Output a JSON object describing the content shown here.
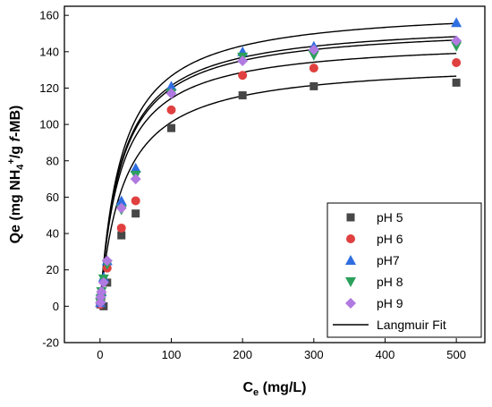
{
  "chart_data": {
    "type": "scatter",
    "xlabel_main": "C",
    "xlabel_sub": "e",
    "xlabel_rest": " (mg/L)",
    "ylabel_main": "Qe (mg NH",
    "ylabel_sub": "4",
    "ylabel_sup": "+",
    "ylabel_mid": "/g ",
    "ylabel_italic": "f",
    "ylabel_end": "-MB)",
    "xlim": [
      -50,
      540
    ],
    "ylim": [
      -20,
      165
    ],
    "xticks": [
      0,
      100,
      200,
      300,
      400,
      500
    ],
    "yticks": [
      -20,
      0,
      20,
      40,
      60,
      80,
      100,
      120,
      140,
      160
    ],
    "grid": false,
    "legend_position": "bottom-right",
    "series": [
      {
        "name": "pH 5",
        "color": "#474747",
        "marker": "square",
        "x": [
          0.5,
          1,
          2,
          5,
          10,
          30,
          50,
          100,
          200,
          300,
          500
        ],
        "y": [
          1,
          3,
          6,
          0,
          13,
          39,
          51,
          98,
          116,
          121,
          123
        ],
        "fit": {
          "qmax": 135,
          "k": 0.03
        }
      },
      {
        "name": "pH 6",
        "color": "#e04040",
        "marker": "circle",
        "x": [
          0.5,
          1,
          2,
          5,
          10,
          30,
          50,
          100,
          200,
          300,
          500
        ],
        "y": [
          1,
          3,
          7,
          14,
          21,
          43,
          58,
          108,
          127,
          131,
          134
        ],
        "fit": {
          "qmax": 147,
          "k": 0.035
        }
      },
      {
        "name": "pH7",
        "color": "#2f6ee0",
        "marker": "triangle",
        "x": [
          0.5,
          1,
          2,
          5,
          10,
          30,
          50,
          100,
          200,
          300,
          500
        ],
        "y": [
          2,
          4,
          8,
          16,
          25,
          58,
          76,
          121,
          140,
          143,
          156
        ],
        "fit": {
          "qmax": 165,
          "k": 0.033
        }
      },
      {
        "name": "pH 8",
        "color": "#2ba05a",
        "marker": "triangle-down",
        "x": [
          0.5,
          1,
          2,
          5,
          10,
          30,
          50,
          100,
          200,
          300,
          500
        ],
        "y": [
          2,
          4,
          8,
          15,
          23,
          53,
          72,
          117,
          137,
          138,
          143
        ],
        "fit": {
          "qmax": 157,
          "k": 0.034
        }
      },
      {
        "name": "pH 9",
        "color": "#b07ae0",
        "marker": "diamond",
        "x": [
          0.5,
          1,
          2,
          5,
          10,
          30,
          50,
          100,
          200,
          300,
          500
        ],
        "y": [
          2,
          5,
          8,
          13,
          25,
          54,
          70,
          117,
          135,
          141,
          146
        ],
        "fit": {
          "qmax": 155,
          "k": 0.034
        }
      }
    ],
    "fit_legend": "Langmuir Fit",
    "fit_color": "#000000"
  }
}
